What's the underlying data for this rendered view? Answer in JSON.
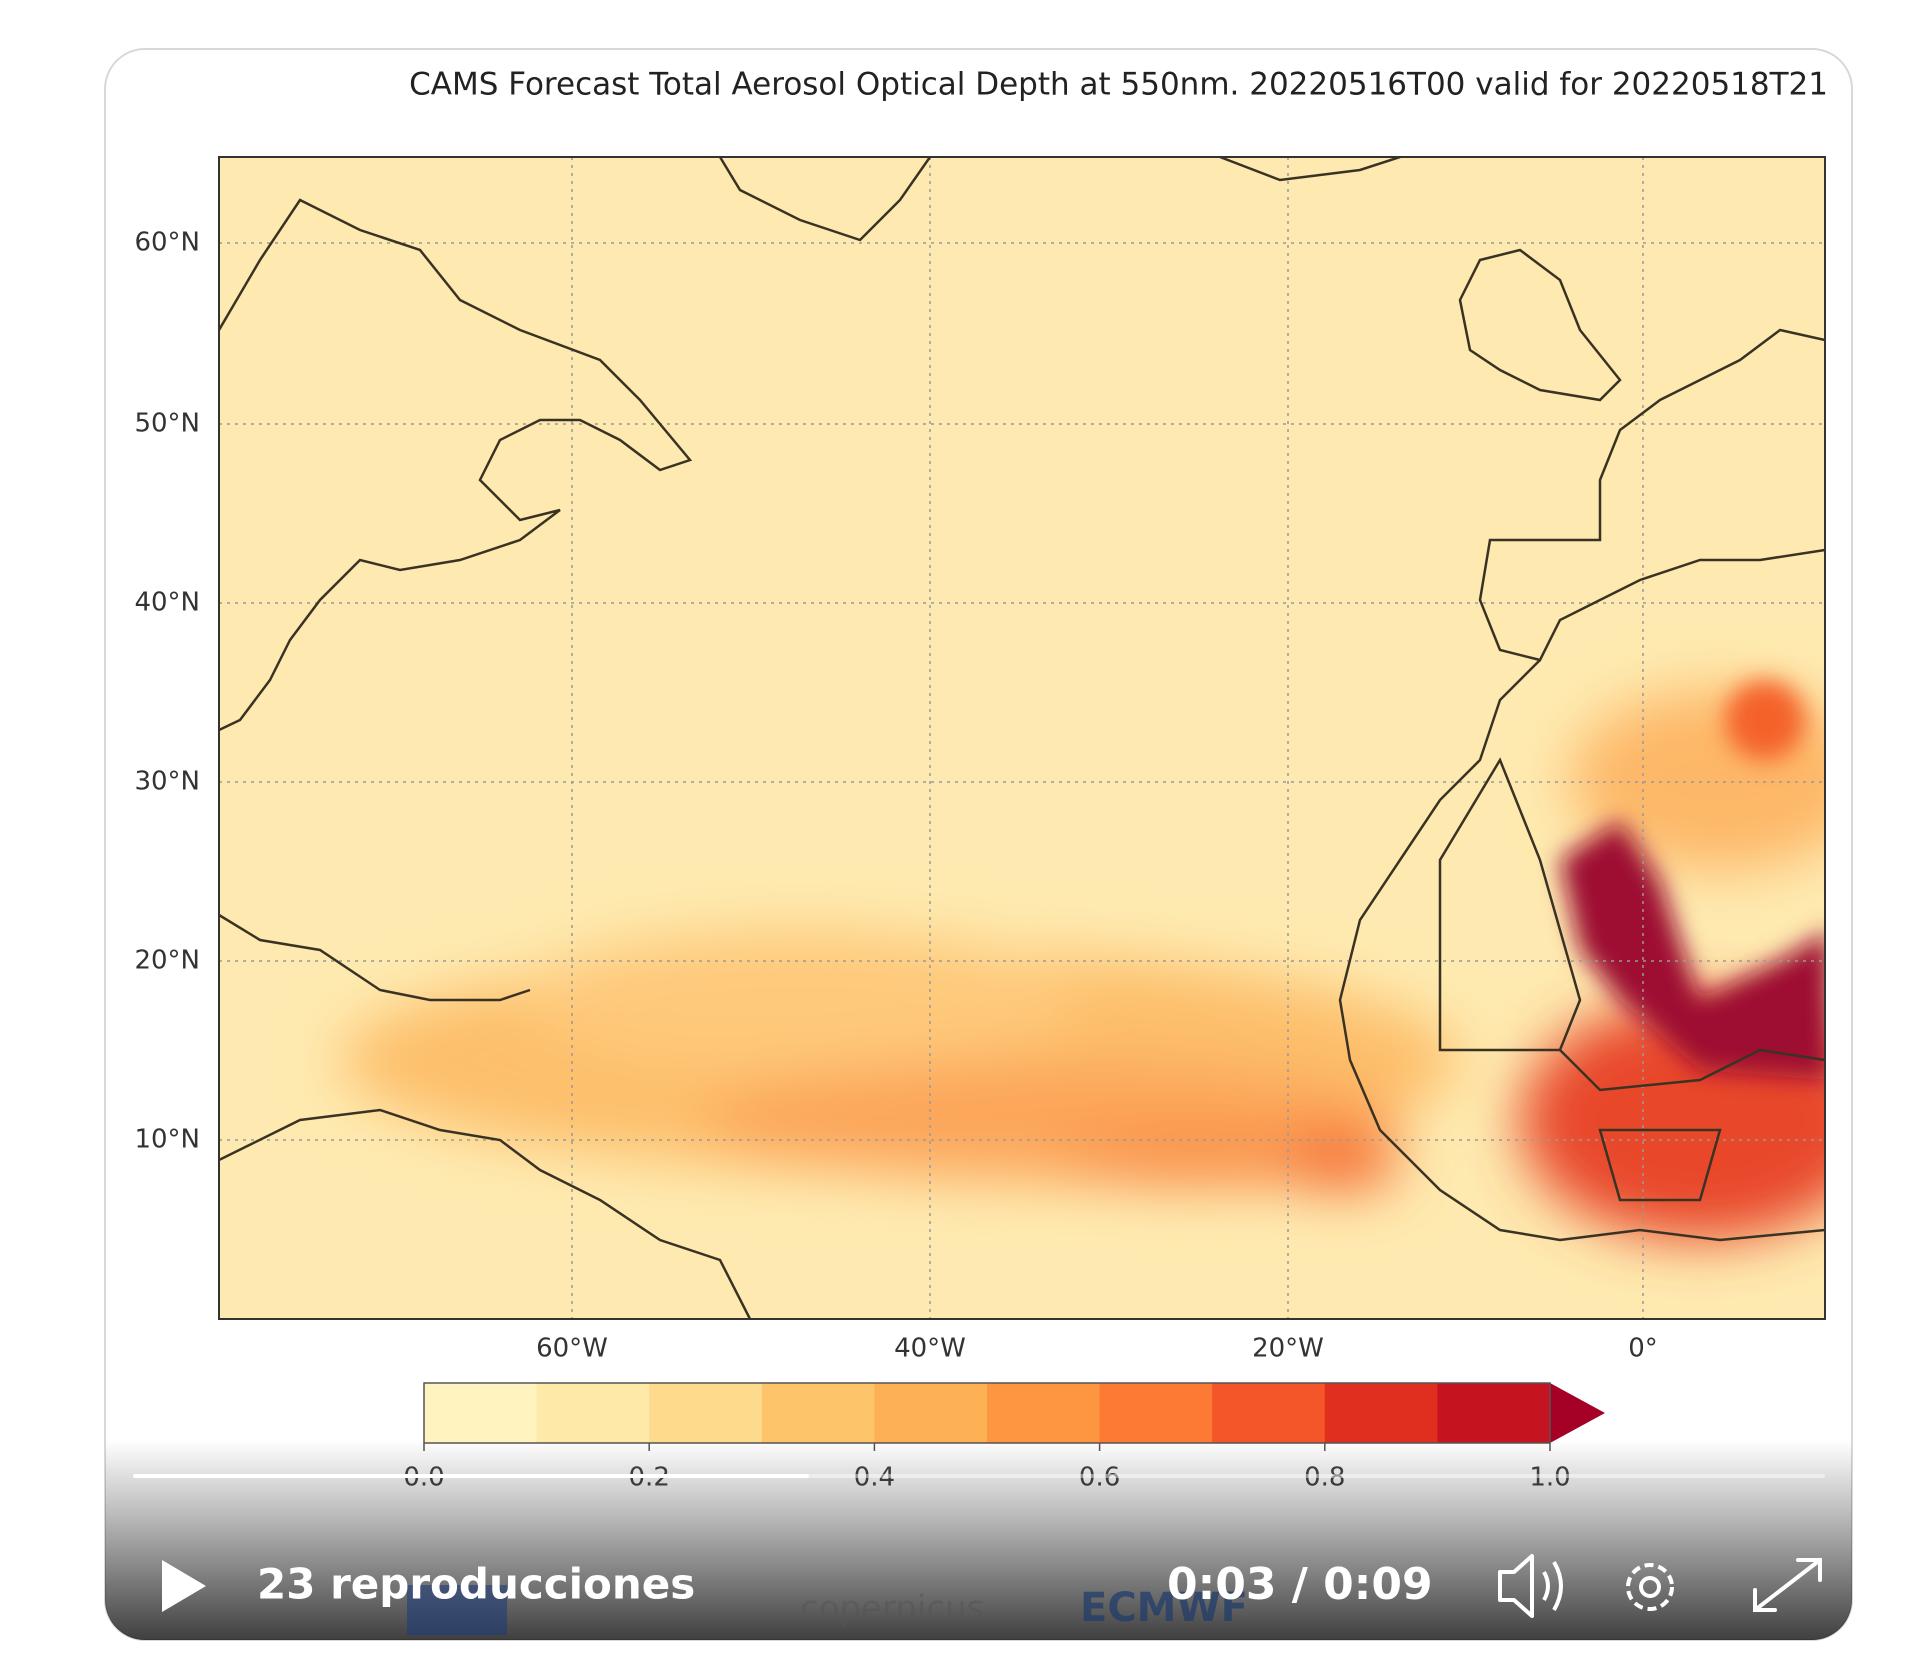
{
  "player": {
    "title": "CAMS Forecast Total Aerosol Optical Depth at 550nm. 20220516T00 valid for 20220518T21",
    "lat_labels": [
      "60°N",
      "50°N",
      "40°N",
      "30°N",
      "20°N",
      "10°N"
    ],
    "lon_labels": [
      "60°W",
      "40°W",
      "20°W",
      "0°"
    ],
    "colorbar_ticks": [
      "0.0",
      "0.2",
      "0.4",
      "0.6",
      "0.8",
      "1.0"
    ],
    "logos": [
      "copernicus",
      "ECMWF"
    ],
    "views": "23 reproducciones",
    "time": "0:03 / 0:09"
  }
}
